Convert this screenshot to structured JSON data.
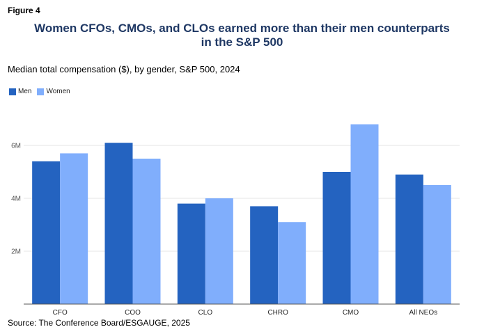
{
  "figure_label": "Figure 4",
  "title_lines": [
    "Women CFOs, CMOs, and CLOs earned more than their men counterparts",
    "in the S&P 500"
  ],
  "source": "Source: The Conference Board/ESGAUGE, 2025",
  "colors": {
    "men": "#2463c0",
    "women": "#80aefc",
    "grid": "#e6e6e6",
    "axis": "#555555"
  },
  "chart_data": {
    "type": "bar",
    "subtitle": "Median total compensation ($), by gender, S&P 500, 2024",
    "categories": [
      "CFO",
      "COO",
      "CLO",
      "CHRO",
      "CMO",
      "All NEOs"
    ],
    "series": [
      {
        "name": "Men",
        "values": [
          5.4,
          6.1,
          3.8,
          3.7,
          5.0,
          4.9
        ]
      },
      {
        "name": "Women",
        "values": [
          5.7,
          5.5,
          4.0,
          3.1,
          6.8,
          4.5
        ]
      }
    ],
    "units": "millions USD",
    "ylim": [
      0,
      7.5
    ],
    "yticks": [
      {
        "value": 2,
        "label": "2M"
      },
      {
        "value": 4,
        "label": "4M"
      },
      {
        "value": 6,
        "label": "6M"
      }
    ],
    "grid": true,
    "legend_position": "top-left"
  }
}
